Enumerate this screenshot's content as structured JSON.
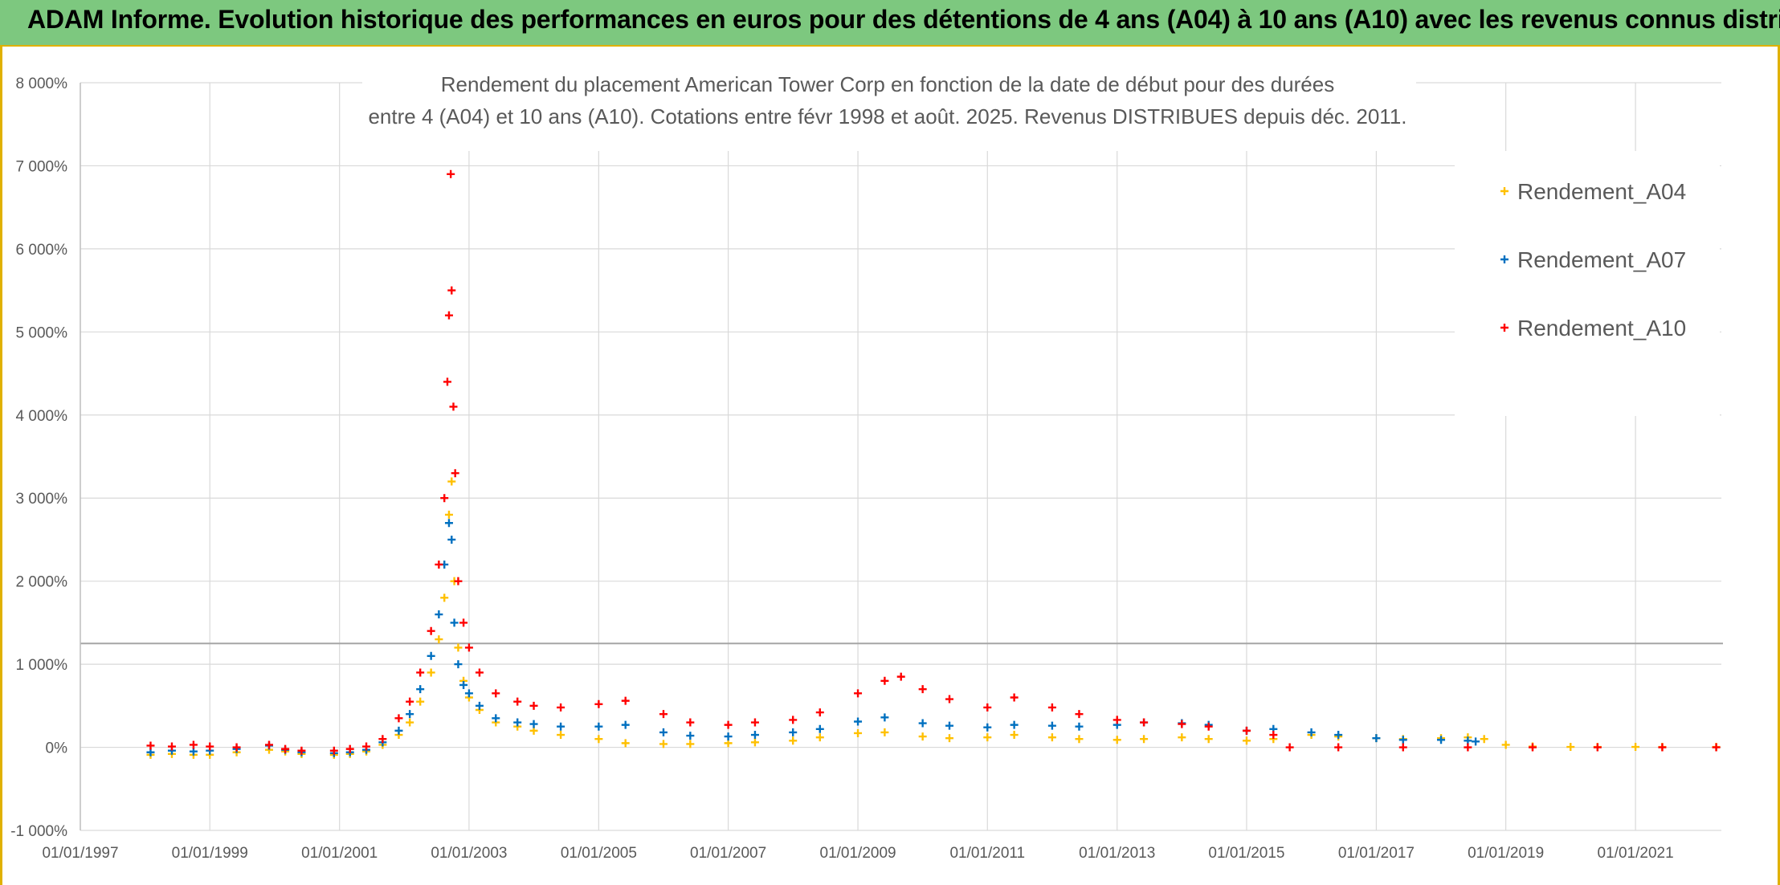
{
  "banner": {
    "title": "ADAM Informe. Evolution historique des performances en euros pour des détentions de 4 ans (A04) à 10 ans (A10) avec les revenus connus distribués"
  },
  "colors": {
    "banner_bg": "#7dc87f",
    "frame_accent": "#e0b100",
    "Rendement_A04": "#ffc000",
    "Rendement_A07": "#0070c0",
    "Rendement_A10": "#ff0000"
  },
  "chart_data": {
    "type": "scatter",
    "title_lines": [
      "Rendement du placement American Tower Corp en fonction de la date de début pour des durées",
      "entre 4 (A04) et 10 ans (A10). Cotations entre févr 1998 et août. 2025. Revenus DISTRIBUES depuis déc. 2011."
    ],
    "xlabel": "",
    "ylabel": "",
    "x_range": [
      "1997-01-01",
      "2022-04-30"
    ],
    "x_ticks": [
      "01/01/1997",
      "01/01/1999",
      "01/01/2001",
      "01/01/2003",
      "01/01/2005",
      "01/01/2007",
      "01/01/2009",
      "01/01/2011",
      "01/01/2013",
      "01/01/2015",
      "01/01/2017",
      "01/01/2019",
      "01/01/2021"
    ],
    "y_range": [
      -1000,
      8000
    ],
    "y_ticks": [
      -1000,
      0,
      1000,
      2000,
      3000,
      4000,
      5000,
      6000,
      7000,
      8000
    ],
    "y_tick_labels": [
      "-1 000%",
      "0%",
      "1 000%",
      "2 000%",
      "3 000%",
      "4 000%",
      "5 000%",
      "6 000%",
      "7 000%",
      "8 000%"
    ],
    "reference_line_y": 1250,
    "grid": true,
    "marker": "+",
    "legend_position": "right",
    "series": [
      {
        "name": "Rendement_A04",
        "color": "#ffc000",
        "points": [
          [
            "1998-02-01",
            -90
          ],
          [
            "1998-06-01",
            -80
          ],
          [
            "1998-10-01",
            -90
          ],
          [
            "1999-01-01",
            -90
          ],
          [
            "1999-06-01",
            -60
          ],
          [
            "1999-12-01",
            -30
          ],
          [
            "2000-03-01",
            -50
          ],
          [
            "2000-06-01",
            -80
          ],
          [
            "2000-12-01",
            -90
          ],
          [
            "2001-03-01",
            -80
          ],
          [
            "2001-06-01",
            -50
          ],
          [
            "2001-09-01",
            30
          ],
          [
            "2001-12-01",
            150
          ],
          [
            "2002-02-01",
            300
          ],
          [
            "2002-04-01",
            550
          ],
          [
            "2002-06-01",
            900
          ],
          [
            "2002-07-15",
            1300
          ],
          [
            "2002-08-15",
            1800
          ],
          [
            "2002-09-10",
            2800
          ],
          [
            "2002-09-25",
            3200
          ],
          [
            "2002-10-10",
            2000
          ],
          [
            "2002-11-01",
            1200
          ],
          [
            "2002-12-01",
            800
          ],
          [
            "2003-01-01",
            600
          ],
          [
            "2003-03-01",
            450
          ],
          [
            "2003-06-01",
            300
          ],
          [
            "2003-10-01",
            250
          ],
          [
            "2004-01-01",
            200
          ],
          [
            "2004-06-01",
            150
          ],
          [
            "2005-01-01",
            100
          ],
          [
            "2005-06-01",
            50
          ],
          [
            "2006-01-01",
            40
          ],
          [
            "2006-06-01",
            40
          ],
          [
            "2007-01-01",
            50
          ],
          [
            "2007-06-01",
            60
          ],
          [
            "2008-01-01",
            80
          ],
          [
            "2008-06-01",
            120
          ],
          [
            "2009-01-01",
            170
          ],
          [
            "2009-06-01",
            180
          ],
          [
            "2010-01-01",
            130
          ],
          [
            "2010-06-01",
            110
          ],
          [
            "2011-01-01",
            120
          ],
          [
            "2011-06-01",
            150
          ],
          [
            "2012-01-01",
            120
          ],
          [
            "2012-06-01",
            100
          ],
          [
            "2013-01-01",
            90
          ],
          [
            "2013-06-01",
            100
          ],
          [
            "2014-01-01",
            120
          ],
          [
            "2014-06-01",
            100
          ],
          [
            "2015-01-01",
            80
          ],
          [
            "2015-06-01",
            100
          ],
          [
            "2016-01-01",
            150
          ],
          [
            "2016-06-01",
            130
          ],
          [
            "2017-01-01",
            110
          ],
          [
            "2017-06-01",
            100
          ],
          [
            "2018-01-01",
            110
          ],
          [
            "2018-06-01",
            120
          ],
          [
            "2018-09-01",
            100
          ],
          [
            "2019-01-01",
            30
          ],
          [
            "2019-06-01",
            10
          ],
          [
            "2020-01-01",
            5
          ],
          [
            "2020-06-01",
            5
          ],
          [
            "2021-01-01",
            5
          ],
          [
            "2021-06-01",
            5
          ],
          [
            "2022-04-01",
            5
          ]
        ]
      },
      {
        "name": "Rendement_A07",
        "color": "#0070c0",
        "points": [
          [
            "1998-02-01",
            -60
          ],
          [
            "1998-06-01",
            -40
          ],
          [
            "1998-10-01",
            -50
          ],
          [
            "1999-01-01",
            -40
          ],
          [
            "1999-06-01",
            -20
          ],
          [
            "1999-12-01",
            20
          ],
          [
            "2000-03-01",
            -30
          ],
          [
            "2000-06-01",
            -60
          ],
          [
            "2000-12-01",
            -70
          ],
          [
            "2001-03-01",
            -60
          ],
          [
            "2001-06-01",
            -30
          ],
          [
            "2001-09-01",
            60
          ],
          [
            "2001-12-01",
            200
          ],
          [
            "2002-02-01",
            400
          ],
          [
            "2002-04-01",
            700
          ],
          [
            "2002-06-01",
            1100
          ],
          [
            "2002-07-15",
            1600
          ],
          [
            "2002-08-15",
            2200
          ],
          [
            "2002-09-10",
            2700
          ],
          [
            "2002-09-25",
            2500
          ],
          [
            "2002-10-10",
            1500
          ],
          [
            "2002-11-01",
            1000
          ],
          [
            "2002-12-01",
            750
          ],
          [
            "2003-01-01",
            650
          ],
          [
            "2003-03-01",
            500
          ],
          [
            "2003-06-01",
            350
          ],
          [
            "2003-10-01",
            300
          ],
          [
            "2004-01-01",
            280
          ],
          [
            "2004-06-01",
            250
          ],
          [
            "2005-01-01",
            250
          ],
          [
            "2005-06-01",
            270
          ],
          [
            "2006-01-01",
            180
          ],
          [
            "2006-06-01",
            140
          ],
          [
            "2007-01-01",
            130
          ],
          [
            "2007-06-01",
            150
          ],
          [
            "2008-01-01",
            180
          ],
          [
            "2008-06-01",
            220
          ],
          [
            "2009-01-01",
            310
          ],
          [
            "2009-06-01",
            360
          ],
          [
            "2010-01-01",
            290
          ],
          [
            "2010-06-01",
            260
          ],
          [
            "2011-01-01",
            240
          ],
          [
            "2011-06-01",
            270
          ],
          [
            "2012-01-01",
            260
          ],
          [
            "2012-06-01",
            250
          ],
          [
            "2013-01-01",
            270
          ],
          [
            "2013-06-01",
            300
          ],
          [
            "2014-01-01",
            290
          ],
          [
            "2014-06-01",
            270
          ],
          [
            "2015-01-01",
            200
          ],
          [
            "2015-06-01",
            220
          ],
          [
            "2016-01-01",
            180
          ],
          [
            "2016-06-01",
            150
          ],
          [
            "2017-01-01",
            110
          ],
          [
            "2017-06-01",
            90
          ],
          [
            "2018-01-01",
            90
          ],
          [
            "2018-06-01",
            80
          ],
          [
            "2018-07-15",
            70
          ]
        ]
      },
      {
        "name": "Rendement_A10",
        "color": "#ff0000",
        "points": [
          [
            "1998-02-01",
            20
          ],
          [
            "1998-06-01",
            10
          ],
          [
            "1998-10-01",
            30
          ],
          [
            "1999-01-01",
            10
          ],
          [
            "1999-06-01",
            0
          ],
          [
            "1999-12-01",
            30
          ],
          [
            "2000-03-01",
            -20
          ],
          [
            "2000-06-01",
            -40
          ],
          [
            "2000-12-01",
            -40
          ],
          [
            "2001-03-01",
            -20
          ],
          [
            "2001-06-01",
            10
          ],
          [
            "2001-09-01",
            100
          ],
          [
            "2001-12-01",
            350
          ],
          [
            "2002-02-01",
            550
          ],
          [
            "2002-04-01",
            900
          ],
          [
            "2002-06-01",
            1400
          ],
          [
            "2002-07-15",
            2200
          ],
          [
            "2002-08-15",
            3000
          ],
          [
            "2002-09-01",
            4400
          ],
          [
            "2002-09-10",
            5200
          ],
          [
            "2002-09-20",
            6900
          ],
          [
            "2002-09-25",
            5500
          ],
          [
            "2002-10-05",
            4100
          ],
          [
            "2002-10-15",
            3300
          ],
          [
            "2002-11-01",
            2000
          ],
          [
            "2002-12-01",
            1500
          ],
          [
            "2003-01-01",
            1200
          ],
          [
            "2003-03-01",
            900
          ],
          [
            "2003-06-01",
            650
          ],
          [
            "2003-10-01",
            550
          ],
          [
            "2004-01-01",
            500
          ],
          [
            "2004-06-01",
            480
          ],
          [
            "2005-01-01",
            520
          ],
          [
            "2005-06-01",
            560
          ],
          [
            "2006-01-01",
            400
          ],
          [
            "2006-06-01",
            300
          ],
          [
            "2007-01-01",
            270
          ],
          [
            "2007-06-01",
            300
          ],
          [
            "2008-01-01",
            330
          ],
          [
            "2008-06-01",
            420
          ],
          [
            "2009-01-01",
            650
          ],
          [
            "2009-06-01",
            800
          ],
          [
            "2009-09-01",
            850
          ],
          [
            "2010-01-01",
            700
          ],
          [
            "2010-06-01",
            580
          ],
          [
            "2011-01-01",
            480
          ],
          [
            "2011-06-01",
            600
          ],
          [
            "2012-01-01",
            480
          ],
          [
            "2012-06-01",
            400
          ],
          [
            "2013-01-01",
            330
          ],
          [
            "2013-06-01",
            300
          ],
          [
            "2014-01-01",
            280
          ],
          [
            "2014-06-01",
            250
          ],
          [
            "2015-01-01",
            200
          ],
          [
            "2015-06-01",
            150
          ],
          [
            "2015-09-01",
            0
          ],
          [
            "2016-06-01",
            0
          ],
          [
            "2017-06-01",
            0
          ],
          [
            "2018-06-01",
            0
          ],
          [
            "2019-06-01",
            0
          ],
          [
            "2020-06-01",
            0
          ],
          [
            "2021-06-01",
            0
          ],
          [
            "2022-04-01",
            0
          ]
        ]
      }
    ]
  }
}
